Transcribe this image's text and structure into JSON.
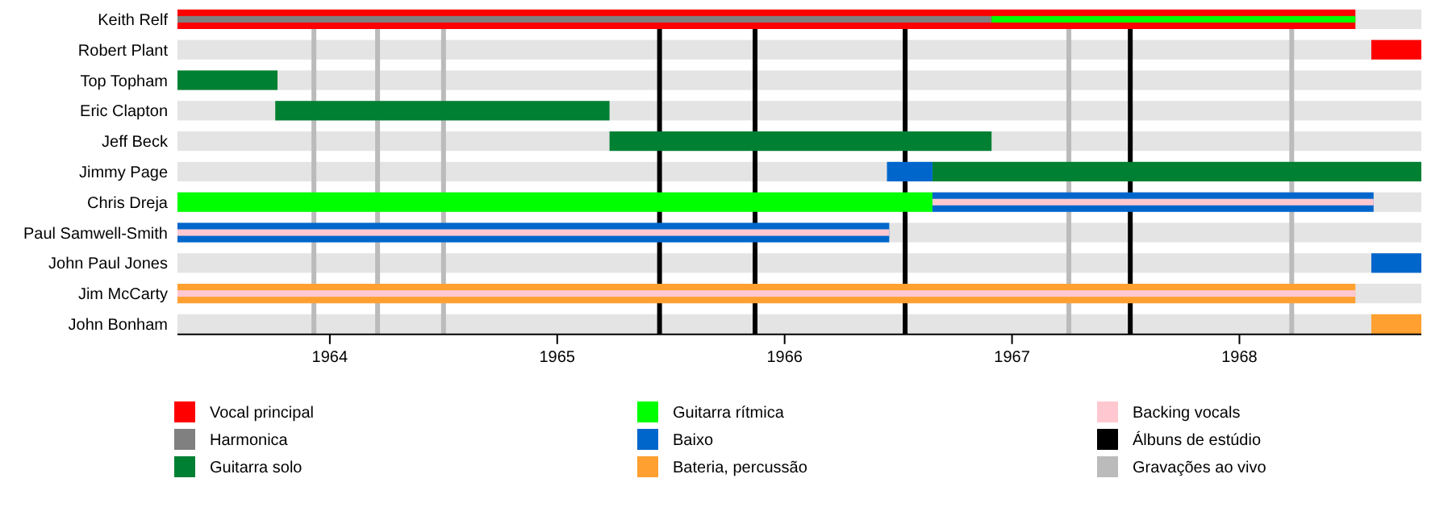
{
  "chart_data": {
    "type": "bar",
    "orientation": "horizontal",
    "stacked": false,
    "categories": [
      "Keith Relf",
      "Robert Plant",
      "Top Topham",
      "Eric Clapton",
      "Jeff Beck",
      "Jimmy Page",
      "Chris Dreja",
      "Paul Samwell-Smith",
      "John Paul Jones",
      "Jim McCarty",
      "John Bonham"
    ],
    "series": [
      {
        "name": "Vocal principal",
        "color": "#ff0000",
        "base": [
          1963.33,
          1968.58,
          null,
          null,
          null,
          null,
          null,
          null,
          null,
          null,
          null
        ],
        "values": [
          5.18,
          0.22,
          null,
          null,
          null,
          null,
          null,
          null,
          null,
          null,
          null
        ]
      },
      {
        "name": "Harmonica",
        "color": "#808080",
        "base": [
          1963.33,
          null,
          null,
          null,
          null,
          null,
          null,
          null,
          null,
          null,
          null
        ],
        "values": [
          3.58,
          null,
          null,
          null,
          null,
          null,
          null,
          null,
          null,
          null,
          null
        ]
      },
      {
        "name": "Guitarra solo",
        "color": "#008033",
        "base": [
          null,
          null,
          1963.33,
          1963.76,
          1965.23,
          1966.65,
          null,
          null,
          null,
          null,
          null
        ],
        "values": [
          null,
          null,
          0.44,
          1.47,
          1.68,
          2.15,
          null,
          null,
          null,
          null,
          null
        ]
      },
      {
        "name": "Guitarra rítmica",
        "color": "#00ff00",
        "base": [
          1966.91,
          null,
          null,
          null,
          null,
          null,
          1963.33,
          null,
          null,
          null,
          null
        ],
        "values": [
          1.6,
          null,
          null,
          null,
          null,
          null,
          3.32,
          null,
          null,
          null,
          null
        ]
      },
      {
        "name": "Baixo",
        "color": "#0066cc",
        "base": [
          null,
          null,
          null,
          null,
          null,
          1966.45,
          1966.65,
          1963.33,
          1968.58,
          null,
          null
        ],
        "values": [
          null,
          null,
          null,
          null,
          null,
          0.2,
          1.94,
          3.13,
          0.22,
          null,
          null
        ]
      },
      {
        "name": "Bateria, percussão",
        "color": "#ffa030",
        "base": [
          null,
          null,
          null,
          null,
          null,
          null,
          null,
          null,
          null,
          1963.33,
          1968.58
        ],
        "values": [
          null,
          null,
          null,
          null,
          null,
          null,
          null,
          null,
          null,
          5.18,
          0.22
        ]
      },
      {
        "name": "Backing vocals",
        "color": "#ffc8d0",
        "base": [
          null,
          null,
          null,
          null,
          null,
          null,
          1966.65,
          1963.33,
          null,
          1963.33,
          null
        ],
        "values": [
          null,
          null,
          null,
          null,
          null,
          null,
          1.94,
          3.13,
          null,
          5.18,
          null
        ]
      }
    ],
    "ref_lines": [
      {
        "axis": "x",
        "value": 1965.45,
        "label": "Álbuns de estúdio",
        "color": "#000000"
      },
      {
        "axis": "x",
        "value": 1965.87,
        "color": "#000000"
      },
      {
        "axis": "x",
        "value": 1966.53,
        "color": "#000000"
      },
      {
        "axis": "x",
        "value": 1967.52,
        "color": "#000000"
      },
      {
        "axis": "x",
        "value": 1963.93,
        "label": "Gravações ao vivo",
        "color": "#bbbbbb"
      },
      {
        "axis": "x",
        "value": 1964.21,
        "color": "#bbbbbb"
      },
      {
        "axis": "x",
        "value": 1964.5,
        "color": "#bbbbbb"
      },
      {
        "axis": "x",
        "value": 1967.25,
        "color": "#bbbbbb"
      },
      {
        "axis": "x",
        "value": 1968.23,
        "color": "#bbbbbb"
      }
    ],
    "xlim": [
      1963.33,
      1968.8
    ],
    "xticks": [
      1964,
      1965,
      1966,
      1967,
      1968
    ],
    "legend": "bottom"
  }
}
